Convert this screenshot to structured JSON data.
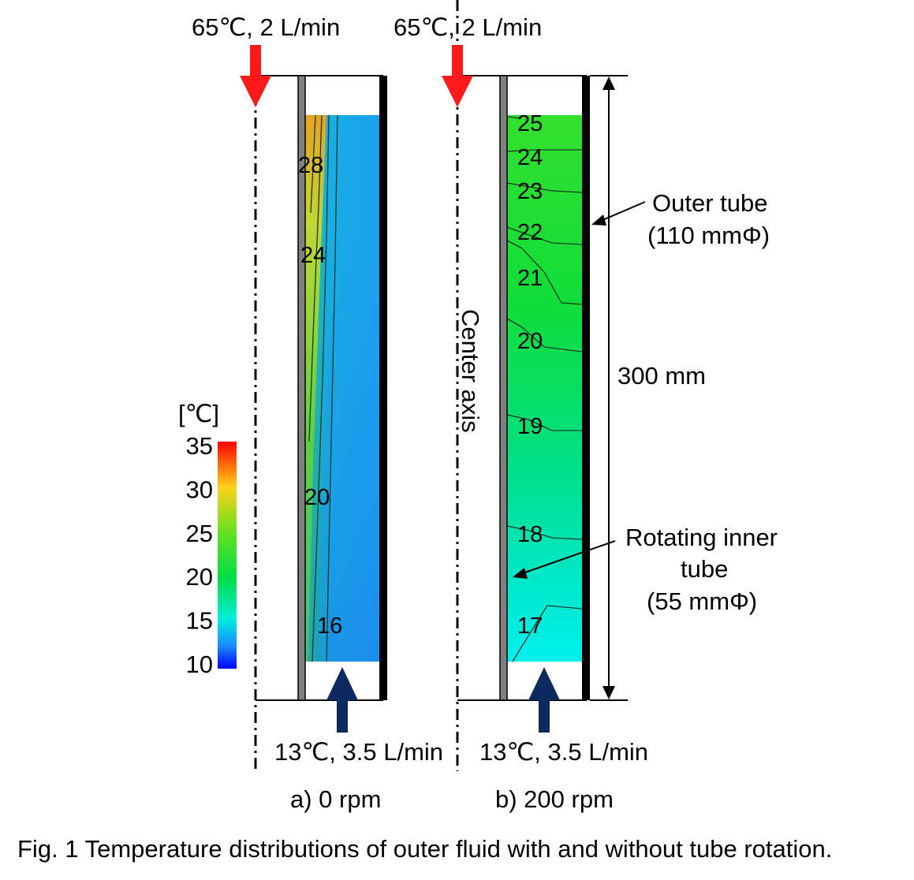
{
  "inlet_hot": {
    "panel_a": "65℃, 2 L/min",
    "panel_b": "65℃, 2 L/min",
    "color": "#ff1a1a"
  },
  "inlet_cold": {
    "panel_a": "13℃, 3.5 L/min",
    "panel_b": "13℃, 3.5 L/min",
    "color": "#0d2a5e"
  },
  "colorbar": {
    "unit": "[℃]",
    "ticks": [
      "35",
      "30",
      "25",
      "20",
      "15",
      "10"
    ],
    "min": 10,
    "max": 35,
    "colors": [
      "#ff0000",
      "#ffd11a",
      "#66e020",
      "#00dd44",
      "#00eedd",
      "#1a8cff",
      "#0000ff"
    ]
  },
  "panel_a": {
    "subtitle": "a) 0 rpm",
    "contour_labels": [
      "28",
      "24",
      "20",
      "16"
    ]
  },
  "panel_b": {
    "subtitle": "b) 200 rpm",
    "contour_labels": [
      "25",
      "24",
      "23",
      "22",
      "21",
      "20",
      "19",
      "18",
      "17"
    ]
  },
  "annotations": {
    "center_axis": "Center axis",
    "outer_tube": "Outer tube",
    "outer_tube_dim": "(110 mmΦ)",
    "height": "300 mm",
    "inner_tube_l1": "Rotating inner",
    "inner_tube_l2": "tube",
    "inner_tube_dim": "(55 mmΦ)"
  },
  "caption": "Fig. 1 Temperature distributions of outer fluid with and without tube rotation."
}
